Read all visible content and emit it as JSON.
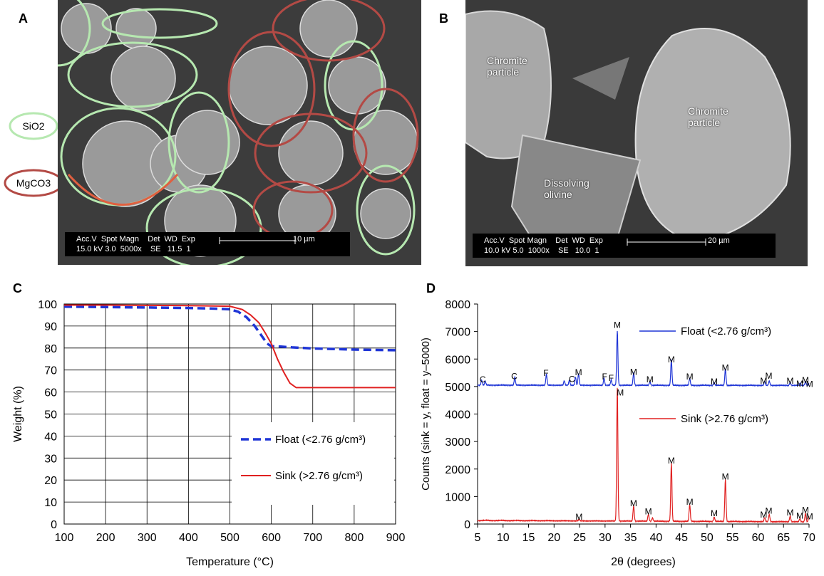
{
  "panels": {
    "a": {
      "letter": "A",
      "legend_sio2": "SiO2",
      "legend_mgco3": "MgCO3",
      "scalebar_row1": "Acc.V  Spot Magn    Det  WD  Exp",
      "scalebar_row2": "15.0 kV 3.0  5000x    SE   11.5  1",
      "scale_label": "10 µm",
      "colors": {
        "sio2": "#b6e8b0",
        "mgco3": "#b34a45"
      }
    },
    "b": {
      "letter": "B",
      "label_chromite_1": "Chromite\nparticle",
      "label_chromite_2": "Chromite\nparticle",
      "label_olivine": "Dissolving\nolivine",
      "scalebar_row1": "Acc.V  Spot Magn    Det  WD  Exp",
      "scalebar_row2": "10.0 kV 5.0  1000x    SE   10.0  1",
      "scale_label": "20 µm"
    },
    "c": {
      "letter": "C"
    },
    "d": {
      "letter": "D"
    }
  },
  "chart_data": [
    {
      "type": "line",
      "panel": "C",
      "xlabel": "Temperature (°C)",
      "ylabel": "Weight (%)",
      "xlim": [
        100,
        900
      ],
      "ylim": [
        0,
        100
      ],
      "xticks": [
        100,
        200,
        300,
        400,
        500,
        600,
        700,
        800,
        900
      ],
      "yticks": [
        0,
        10,
        20,
        30,
        40,
        50,
        60,
        70,
        80,
        90,
        100
      ],
      "grid": true,
      "legend_position": "bottom-right",
      "series": [
        {
          "name": "Float (<2.76 g/cm³)",
          "color": "#1f35d6",
          "dash": true,
          "x": [
            100,
            200,
            300,
            400,
            450,
            500,
            520,
            540,
            560,
            575,
            590,
            600,
            620,
            650,
            700,
            800,
            900
          ],
          "y": [
            98.8,
            98.6,
            98.4,
            98.2,
            98.0,
            97.6,
            96.5,
            94,
            90,
            86,
            82,
            80.8,
            80.7,
            80.3,
            79.8,
            79.3,
            79
          ]
        },
        {
          "name": "Sink (>2.76 g/cm³)",
          "color": "#e02020",
          "dash": false,
          "x": [
            100,
            200,
            300,
            400,
            500,
            530,
            550,
            570,
            585,
            600,
            615,
            630,
            645,
            660,
            700,
            800,
            900
          ],
          "y": [
            99.5,
            99.5,
            99.4,
            99.3,
            99.0,
            97.5,
            95,
            91.5,
            87,
            82,
            75,
            69,
            64,
            62,
            62,
            62,
            62
          ]
        }
      ]
    },
    {
      "type": "line",
      "panel": "D",
      "xlabel": "2θ (degrees)",
      "ylabel": "Counts (sink = y, float = y–5000)",
      "xlim": [
        5,
        70
      ],
      "ylim": [
        0,
        8000
      ],
      "xticks": [
        5,
        10,
        15,
        20,
        25,
        30,
        35,
        40,
        45,
        50,
        55,
        60,
        65,
        70
      ],
      "yticks": [
        0,
        1000,
        2000,
        3000,
        4000,
        5000,
        6000,
        7000,
        8000
      ],
      "grid": false,
      "series": [
        {
          "name": "Float (<2.76 g/cm³)",
          "color": "#1f35d6",
          "baseline": 5050,
          "baseline_end": 5040,
          "peaks": [
            [
              5.8,
              180
            ],
            [
              6.5,
              150
            ],
            [
              12.3,
              300
            ],
            [
              18.5,
              400
            ],
            [
              22,
              160
            ],
            [
              23,
              180
            ],
            [
              24.2,
              300
            ],
            [
              24.8,
              420
            ],
            [
              29.8,
              250
            ],
            [
              31.2,
              200
            ],
            [
              32.4,
              1980
            ],
            [
              35.6,
              450
            ],
            [
              38.8,
              130
            ],
            [
              43,
              920
            ],
            [
              46.6,
              250
            ],
            [
              51.4,
              100
            ],
            [
              53.6,
              600
            ],
            [
              61.3,
              150
            ],
            [
              62.2,
              160
            ],
            [
              66.3,
              100
            ],
            [
              68.2,
              80
            ],
            [
              69.3,
              130
            ],
            [
              70,
              80
            ]
          ]
        },
        {
          "name": "Sink (>2.76 g/cm³)",
          "color": "#e02020",
          "baseline": 130,
          "baseline_end": 80,
          "peaks": [
            [
              24.9,
              60
            ],
            [
              32.4,
              4850
            ],
            [
              35.6,
              550
            ],
            [
              38.5,
              250
            ],
            [
              39.3,
              120
            ],
            [
              43,
              2100
            ],
            [
              46.6,
              600
            ],
            [
              51.4,
              160
            ],
            [
              53.6,
              1520
            ],
            [
              61.3,
              150
            ],
            [
              62.2,
              260
            ],
            [
              66.3,
              210
            ],
            [
              68.2,
              110
            ],
            [
              69.3,
              300
            ],
            [
              70,
              200
            ]
          ]
        }
      ],
      "annotations": {
        "float": [
          {
            "x": 6,
            "y": 5150,
            "text": "C"
          },
          {
            "x": 12.2,
            "y": 5270,
            "text": "C"
          },
          {
            "x": 18.4,
            "y": 5380,
            "text": "F"
          },
          {
            "x": 23.5,
            "y": 5170,
            "text": "C"
          },
          {
            "x": 24.8,
            "y": 5410,
            "text": "M"
          },
          {
            "x": 29.9,
            "y": 5250,
            "text": "F"
          },
          {
            "x": 31.2,
            "y": 5200,
            "text": "F"
          },
          {
            "x": 32.4,
            "y": 7130,
            "text": "M"
          },
          {
            "x": 35.6,
            "y": 5430,
            "text": "M"
          },
          {
            "x": 38.8,
            "y": 5150,
            "text": "M"
          },
          {
            "x": 43,
            "y": 5880,
            "text": "M"
          },
          {
            "x": 46.6,
            "y": 5250,
            "text": "M"
          },
          {
            "x": 51.4,
            "y": 5080,
            "text": "M"
          },
          {
            "x": 53.6,
            "y": 5580,
            "text": "M"
          },
          {
            "x": 61.1,
            "y": 5100,
            "text": "M"
          },
          {
            "x": 62.1,
            "y": 5280,
            "text": "M"
          },
          {
            "x": 66.3,
            "y": 5100,
            "text": "M"
          },
          {
            "x": 68.2,
            "y": 5000,
            "text": "M"
          },
          {
            "x": 69.3,
            "y": 5130,
            "text": "M"
          },
          {
            "x": 70.1,
            "y": 4980,
            "text": "M"
          }
        ],
        "sink": [
          {
            "x": 24.9,
            "y": 160,
            "text": "M"
          },
          {
            "x": 33,
            "y": 4670,
            "text": "M"
          },
          {
            "x": 35.6,
            "y": 650,
            "text": "M"
          },
          {
            "x": 38.5,
            "y": 350,
            "text": "M"
          },
          {
            "x": 43,
            "y": 2200,
            "text": "M"
          },
          {
            "x": 46.6,
            "y": 700,
            "text": "M"
          },
          {
            "x": 51.4,
            "y": 280,
            "text": "M"
          },
          {
            "x": 53.6,
            "y": 1620,
            "text": "M"
          },
          {
            "x": 61.1,
            "y": 230,
            "text": "M"
          },
          {
            "x": 62.1,
            "y": 370,
            "text": "M"
          },
          {
            "x": 66.3,
            "y": 310,
            "text": "M"
          },
          {
            "x": 68.2,
            "y": 190,
            "text": "M"
          },
          {
            "x": 69.3,
            "y": 400,
            "text": "M"
          },
          {
            "x": 70.1,
            "y": 170,
            "text": "M"
          }
        ]
      }
    }
  ]
}
